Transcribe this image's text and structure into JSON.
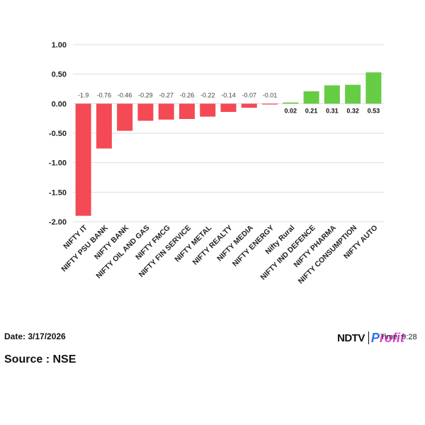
{
  "chart_data": {
    "type": "bar",
    "categories": [
      "NIFTY IT",
      "NIFTY PSU BANK",
      "NIFTY BANK",
      "NIFTY OIL AND GAS",
      "NIFTY FMCG",
      "NIFTY FIN SERVICE",
      "NIFTY METAL",
      "NIFTY REALTY",
      "NIFTY MEDIA",
      "NIFTY ENERGY",
      "Nifty Rural",
      "NIFTY IND DEFENCE",
      "NIFTY PHARMA",
      "NIFTY CONSUMPTION",
      "NIFTY AUTO"
    ],
    "values": [
      -1.9,
      -0.76,
      -0.46,
      -0.29,
      -0.27,
      -0.26,
      -0.22,
      -0.14,
      -0.07,
      -0.01,
      0.02,
      0.21,
      0.31,
      0.32,
      0.53
    ],
    "data_labels": [
      "-1.9",
      "-0.76",
      "-0.46",
      "-0.29",
      "-0.27",
      "-0.26",
      "-0.22",
      "-0.14",
      "-0.07",
      "-0.01",
      "0.02",
      "0.21",
      "0.31",
      "0.32",
      "0.53"
    ],
    "yticks": [
      1.0,
      0.5,
      0.0,
      -0.5,
      -1.0,
      -1.5,
      -2.0
    ],
    "ytick_labels": [
      "1.00",
      "0.50",
      "0.00",
      "-0.50",
      "-1.00",
      "-1.50",
      "-2.00"
    ],
    "ylim": [
      -2.0,
      1.0
    ],
    "grid": true,
    "colors": {
      "negative": "#f34a55",
      "positive": "#66cc44"
    }
  },
  "footer": {
    "date": "Date: 3/17/2026",
    "source": "Source : NSE",
    "brand_ndtv": "NDTV",
    "brand_profit_first": "P",
    "brand_profit_rest": "rofit",
    "time_overlay": "Time: 9:28"
  }
}
